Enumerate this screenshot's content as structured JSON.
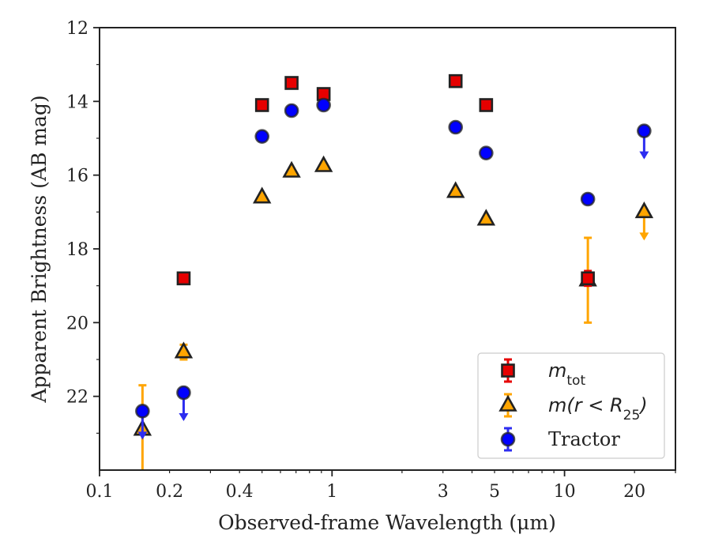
{
  "chart_data": {
    "type": "scatter",
    "xlabel": "Observed-frame Wavelength (μm)",
    "ylabel": "Apparent Brightness (AB mag)",
    "x_scale": "log",
    "xlim": [
      0.1,
      30
    ],
    "ylim": [
      24,
      12
    ],
    "y_inverted": true,
    "x_ticks": [
      0.1,
      0.2,
      0.4,
      1,
      3,
      5,
      10,
      20
    ],
    "x_tick_labels": [
      "0.1",
      "0.2",
      "0.4",
      "1",
      "3",
      "5",
      "10",
      "20"
    ],
    "y_ticks": [
      12,
      14,
      16,
      18,
      20,
      22
    ],
    "y_tick_labels": [
      "12",
      "14",
      "16",
      "18",
      "20",
      "22"
    ],
    "grid": false,
    "legend_position": "lower-right",
    "series": [
      {
        "id": "mtot",
        "name": "m_tot",
        "legend_main": "m",
        "legend_sub": "tot",
        "marker": "square",
        "color": "#e60000",
        "points": [
          {
            "x": 0.23,
            "y": 18.8
          },
          {
            "x": 0.5,
            "y": 14.1
          },
          {
            "x": 0.67,
            "y": 13.5
          },
          {
            "x": 0.92,
            "y": 13.8
          },
          {
            "x": 3.4,
            "y": 13.45
          },
          {
            "x": 4.6,
            "y": 14.1
          },
          {
            "x": 12.6,
            "y": 18.8,
            "err_lo": 0.2,
            "err_hi": 0.2
          }
        ]
      },
      {
        "id": "mr25",
        "name": "m(r < R25)",
        "legend_main": "m(r < R",
        "legend_sub": "25",
        "legend_end": ")",
        "marker": "triangle",
        "color": "#ffa500",
        "points": [
          {
            "x": 0.153,
            "y": 22.9,
            "err_lo": 1.2,
            "err_hi": 1.5
          },
          {
            "x": 0.23,
            "y": 20.8,
            "err_lo": 0.2,
            "err_hi": 0.2
          },
          {
            "x": 0.5,
            "y": 16.6
          },
          {
            "x": 0.67,
            "y": 15.9
          },
          {
            "x": 0.92,
            "y": 15.75
          },
          {
            "x": 3.4,
            "y": 16.45
          },
          {
            "x": 4.6,
            "y": 17.2
          },
          {
            "x": 12.6,
            "y": 18.85,
            "err_lo": 1.15,
            "err_hi": 1.15
          },
          {
            "x": 22,
            "y": 17.0,
            "upper_limit": true
          }
        ]
      },
      {
        "id": "tractor",
        "name": "Tractor",
        "legend_main": "Tractor",
        "marker": "circle",
        "color": "#0000ff",
        "points": [
          {
            "x": 0.153,
            "y": 22.4,
            "upper_limit": true
          },
          {
            "x": 0.23,
            "y": 21.9,
            "upper_limit": true
          },
          {
            "x": 0.5,
            "y": 14.95
          },
          {
            "x": 0.67,
            "y": 14.25
          },
          {
            "x": 0.92,
            "y": 14.1
          },
          {
            "x": 3.4,
            "y": 14.7
          },
          {
            "x": 4.6,
            "y": 15.4
          },
          {
            "x": 12.6,
            "y": 16.65
          },
          {
            "x": 22,
            "y": 14.8,
            "upper_limit": true
          }
        ]
      }
    ]
  }
}
